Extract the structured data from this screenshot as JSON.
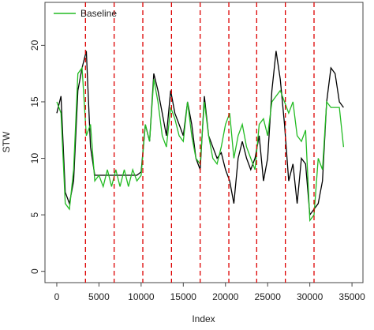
{
  "chart_data": {
    "type": "line",
    "x_label": "Index",
    "y_label": "STW",
    "x": [
      0,
      500,
      1000,
      1500,
      2000,
      2500,
      3000,
      3500,
      4000,
      4500,
      5000,
      5500,
      6000,
      6500,
      7000,
      7500,
      8000,
      8500,
      9000,
      9500,
      10000,
      10500,
      11000,
      11500,
      12000,
      12500,
      13000,
      13500,
      14000,
      14500,
      15000,
      15500,
      16000,
      16500,
      17000,
      17500,
      18000,
      18500,
      19000,
      19500,
      20000,
      20500,
      21000,
      21500,
      22000,
      22500,
      23000,
      23500,
      24000,
      24500,
      25000,
      25500,
      26000,
      26500,
      27000,
      27500,
      28000,
      28500,
      29000,
      29500,
      30000,
      30500,
      31000,
      31500,
      32000,
      32500,
      33000,
      33500,
      34000
    ],
    "series": [
      {
        "color": "#000000",
        "values": [
          14,
          15.5,
          7,
          6,
          8,
          16,
          18,
          19.5,
          11,
          8.5,
          8.5,
          8.5,
          8.5,
          8.5,
          8.5,
          8.5,
          8.5,
          8.5,
          8.5,
          8.5,
          8.8,
          13,
          11.5,
          17.5,
          16,
          14,
          12,
          16,
          14,
          13,
          12,
          15,
          13,
          10,
          9,
          15.5,
          12,
          11,
          10,
          10.5,
          9,
          8,
          6,
          10,
          11.5,
          10,
          9,
          10,
          12,
          8,
          10,
          16,
          19.5,
          17,
          13,
          8,
          9.5,
          6,
          10,
          9.5,
          5,
          5.5,
          6,
          8,
          15,
          18,
          17.5,
          15,
          14.5
        ]
      },
      {
        "name": "Baseline",
        "color": "#22bb22",
        "values": [
          15,
          14,
          6,
          5.5,
          9,
          17.5,
          18,
          12,
          13,
          8,
          8.5,
          7.5,
          9,
          7.5,
          9,
          7.5,
          9,
          7.5,
          9,
          8,
          8.5,
          13,
          11.5,
          17,
          15,
          12,
          11,
          14.5,
          13.5,
          12,
          11.5,
          15,
          12,
          10,
          9.5,
          15,
          12,
          10,
          9.5,
          11,
          13,
          14,
          10,
          12,
          13,
          11,
          10,
          9,
          13,
          13.5,
          12,
          15,
          15.5,
          16,
          15,
          14,
          15,
          12,
          11.5,
          12.5,
          4.5,
          5,
          10,
          9,
          15,
          14.5,
          14.5,
          14.5,
          11
        ]
      }
    ],
    "vlines": [
      3400,
      6800,
      10200,
      13600,
      17000,
      20400,
      23700,
      27100,
      30500
    ],
    "vline_color": "#dd0000",
    "xlim": [
      -1400,
      36300
    ],
    "ylim": [
      -1,
      23.8
    ],
    "xticks": [
      0,
      5000,
      10000,
      15000,
      20000,
      25000,
      30000,
      35000
    ],
    "yticks": [
      0,
      5,
      10,
      15,
      20
    ],
    "legend": "top-left"
  }
}
